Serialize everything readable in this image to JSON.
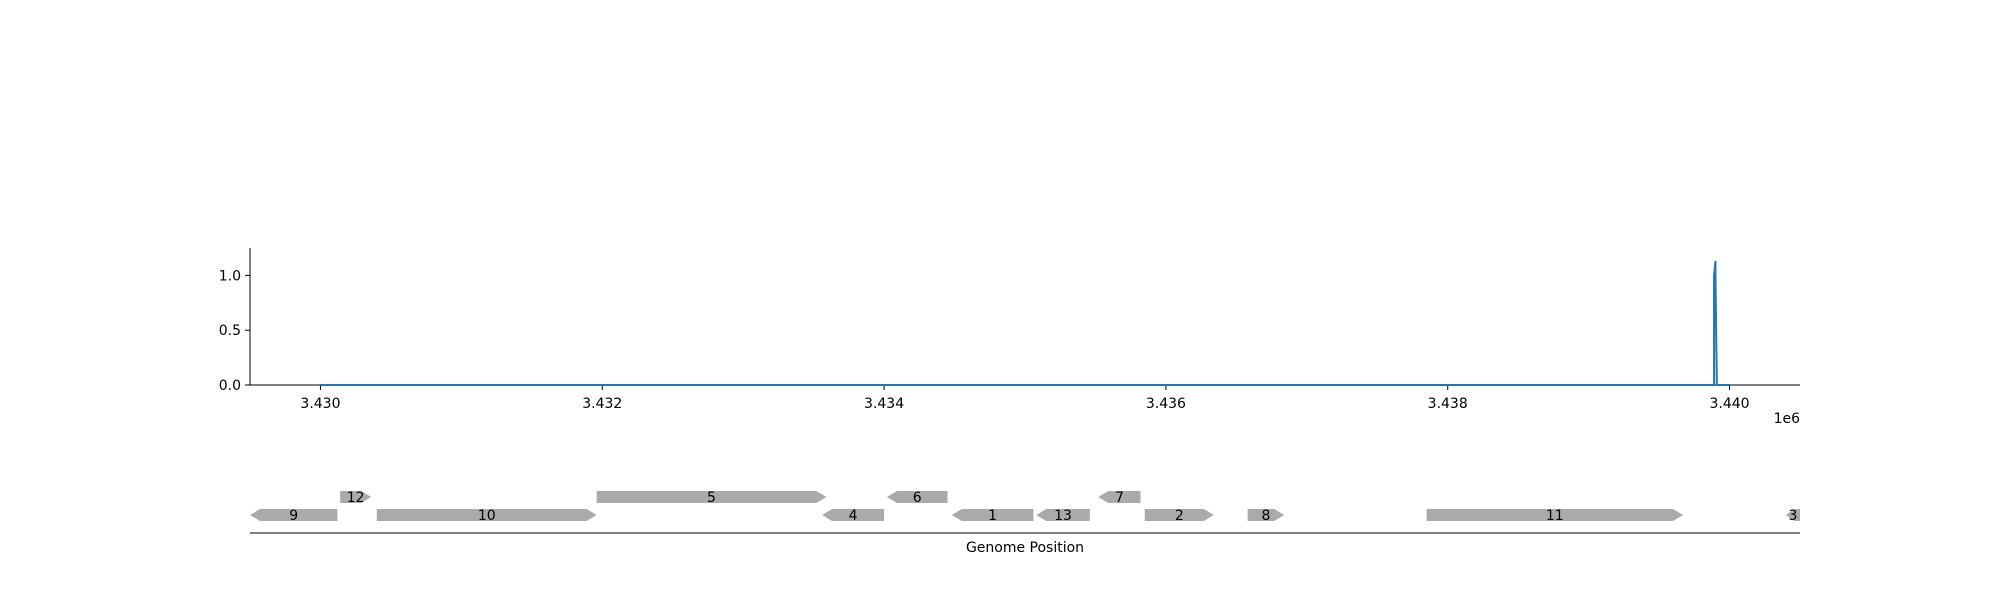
{
  "chart_data": [
    {
      "type": "line",
      "title": "",
      "xlabel": "",
      "ylabel": "",
      "xlim": [
        3429500,
        3440500
      ],
      "ylim": [
        0.0,
        1.25
      ],
      "x_tick_values": [
        3430000,
        3432000,
        3434000,
        3436000,
        3438000,
        3440000
      ],
      "x_tick_labels": [
        "3.430",
        "3.432",
        "3.434",
        "3.436",
        "3.438",
        "3.440"
      ],
      "x_offset_label": "1e6",
      "y_tick_values": [
        0.0,
        0.5,
        1.0
      ],
      "y_tick_labels": [
        "0.0",
        "0.5",
        "1.0"
      ],
      "grid": false,
      "color": "#1f77b4",
      "series": [
        {
          "x": [
            3430000,
            3439890,
            3439890,
            3439900,
            3439900,
            3439910,
            3439910,
            3440000
          ],
          "y": [
            0.0,
            0.0,
            1.0,
            1.13,
            1.0,
            0.0,
            0.0,
            0.0
          ]
        }
      ]
    },
    {
      "type": "gene-track",
      "xlabel": "Genome Position",
      "xlim": [
        3429500,
        3440500
      ],
      "color": "#aaaaaa",
      "genes": [
        {
          "label": "9",
          "start": 3429500,
          "end": 3430120,
          "strand": "-",
          "row": 0
        },
        {
          "label": "12",
          "start": 3430140,
          "end": 3430360,
          "strand": "+",
          "row": 1
        },
        {
          "label": "10",
          "start": 3430400,
          "end": 3431960,
          "strand": "+",
          "row": 0
        },
        {
          "label": "5",
          "start": 3431960,
          "end": 3433590,
          "strand": "+",
          "row": 1
        },
        {
          "label": "4",
          "start": 3433560,
          "end": 3434000,
          "strand": "-",
          "row": 0
        },
        {
          "label": "6",
          "start": 3434020,
          "end": 3434450,
          "strand": "-",
          "row": 1
        },
        {
          "label": "1",
          "start": 3434480,
          "end": 3435060,
          "strand": "-",
          "row": 0
        },
        {
          "label": "13",
          "start": 3435080,
          "end": 3435460,
          "strand": "-",
          "row": 0
        },
        {
          "label": "7",
          "start": 3435520,
          "end": 3435820,
          "strand": "-",
          "row": 1
        },
        {
          "label": "2",
          "start": 3435850,
          "end": 3436340,
          "strand": "+",
          "row": 0
        },
        {
          "label": "8",
          "start": 3436580,
          "end": 3436840,
          "strand": "+",
          "row": 0
        },
        {
          "label": "11",
          "start": 3437850,
          "end": 3439670,
          "strand": "+",
          "row": 0
        },
        {
          "label": "3",
          "start": 3440400,
          "end": 3440500,
          "strand": "-",
          "row": 0
        }
      ]
    }
  ]
}
